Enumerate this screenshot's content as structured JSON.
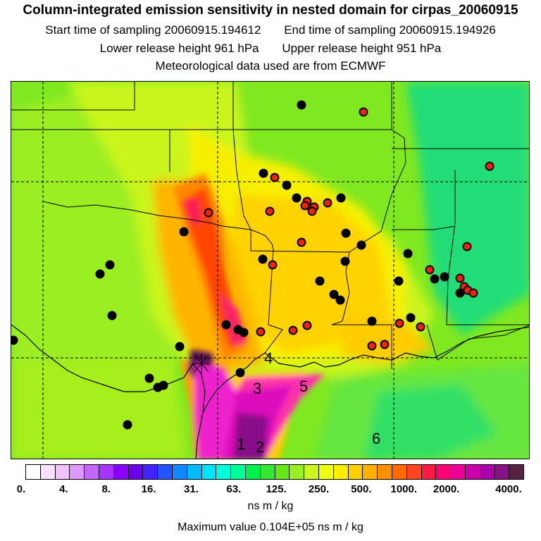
{
  "header": {
    "title": "Column-integrated emission sensitivity in nested domain for cirpas_20060915",
    "start_time": "Start time of sampling 20060915.194612",
    "end_time": "End time of sampling 20060915.194926",
    "lower_height": "Lower release height  961 hPa",
    "upper_height": "Upper release height  951 hPa",
    "met_data": "Meteorological data used are from ECMWF"
  },
  "map": {
    "region_labels": [
      "1",
      "2",
      "3",
      "4",
      "5",
      "6"
    ]
  },
  "colorbar": {
    "colors": [
      "#ffffff",
      "#f8e0ff",
      "#f0c0ff",
      "#dd99ff",
      "#c266ff",
      "#a833ff",
      "#8a00ff",
      "#6a00ee",
      "#4422ff",
      "#2255ff",
      "#1188ff",
      "#00bbff",
      "#00e5ff",
      "#00ffdd",
      "#00ff99",
      "#00f050",
      "#33e833",
      "#66e81a",
      "#99ee22",
      "#ccf522",
      "#eeff11",
      "#ffee00",
      "#ffd000",
      "#ffb000",
      "#ff9000",
      "#ff6a00",
      "#ff4422",
      "#ff1a44",
      "#ff0077",
      "#ee0099",
      "#cc00aa",
      "#aa00aa",
      "#881188",
      "#552244"
    ],
    "tick_labels": [
      "0.",
      "4.",
      "8.",
      "16.",
      "31.",
      "63.",
      "125.",
      "250.",
      "500.",
      "1000.",
      "2000.",
      "4000."
    ],
    "units": "ns m / kg"
  },
  "footer": {
    "max_value": "Maximum value  0.104E+05 ns m / kg"
  }
}
